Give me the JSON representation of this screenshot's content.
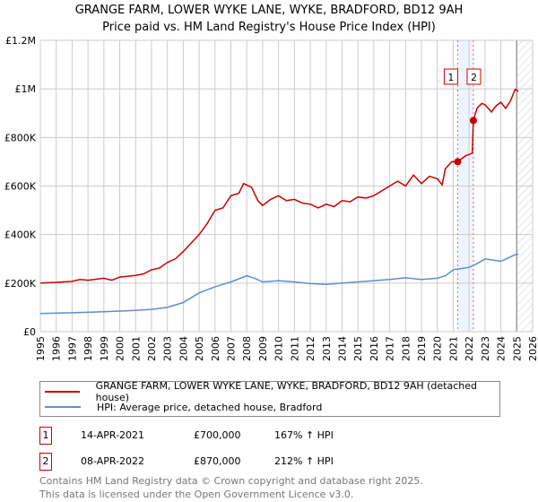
{
  "chart_data": {
    "type": "line",
    "title": "GRANGE FARM, LOWER WYKE LANE, WYKE, BRADFORD, BD12 9AH",
    "subtitle": "Price paid vs. HM Land Registry's House Price Index (HPI)",
    "xlim": [
      1995,
      2026
    ],
    "ylim": [
      0,
      1200000
    ],
    "x_ticks": [
      "1995",
      "1996",
      "1997",
      "1998",
      "1999",
      "2000",
      "2001",
      "2002",
      "2003",
      "2004",
      "2005",
      "2006",
      "2007",
      "2008",
      "2009",
      "2010",
      "2011",
      "2012",
      "2013",
      "2014",
      "2015",
      "2016",
      "2017",
      "2018",
      "2019",
      "2020",
      "2021",
      "2022",
      "2023",
      "2024",
      "2025",
      "2026"
    ],
    "y_ticks": [
      {
        "v": 0,
        "label": "£0"
      },
      {
        "v": 200000,
        "label": "£200K"
      },
      {
        "v": 400000,
        "label": "£400K"
      },
      {
        "v": 600000,
        "label": "£600K"
      },
      {
        "v": 800000,
        "label": "£800K"
      },
      {
        "v": 1000000,
        "label": "£1M"
      },
      {
        "v": 1200000,
        "label": "£1.2M"
      }
    ],
    "grid": true,
    "series": [
      {
        "name": "GRANGE FARM, LOWER WYKE LANE, WYKE, BRADFORD, BD12 9AH (detached house)",
        "color": "#cc0000",
        "x": [
          1995,
          1996,
          1997,
          1997.5,
          1998,
          1999,
          1999.5,
          2000,
          2001,
          2001.5,
          2002,
          2002.5,
          2003,
          2003.5,
          2004,
          2004.5,
          2005,
          2005.5,
          2006,
          2006.5,
          2007,
          2007.5,
          2007.8,
          2008.3,
          2008.7,
          2009,
          2009.5,
          2010,
          2010.5,
          2011,
          2011.5,
          2012,
          2012.5,
          2013,
          2013.5,
          2014,
          2014.5,
          2015,
          2015.5,
          2016,
          2016.5,
          2017,
          2017.5,
          2018,
          2018.5,
          2019,
          2019.5,
          2020,
          2020.3,
          2020.5,
          2020.9,
          2021.28,
          2021.8,
          2022.2,
          2022.27,
          2022.5,
          2022.8,
          2023,
          2023.4,
          2023.7,
          2024,
          2024.3,
          2024.6,
          2024.9,
          2025.1
        ],
        "y": [
          200000,
          203000,
          207000,
          215000,
          212000,
          220000,
          212000,
          225000,
          232000,
          238000,
          255000,
          262000,
          285000,
          300000,
          330000,
          365000,
          400000,
          445000,
          500000,
          510000,
          560000,
          570000,
          610000,
          595000,
          540000,
          520000,
          545000,
          560000,
          540000,
          545000,
          530000,
          525000,
          510000,
          525000,
          515000,
          540000,
          535000,
          555000,
          550000,
          560000,
          580000,
          600000,
          620000,
          600000,
          645000,
          610000,
          640000,
          630000,
          605000,
          670000,
          700000,
          700000,
          725000,
          735000,
          870000,
          920000,
          940000,
          935000,
          905000,
          930000,
          945000,
          920000,
          950000,
          998000,
          990000
        ]
      },
      {
        "name": "HPI: Average price, detached house, Bradford",
        "color": "#5b8fd0",
        "x": [
          1995,
          1997,
          1999,
          2000,
          2001,
          2002,
          2003,
          2004,
          2005,
          2006,
          2007,
          2008,
          2008.5,
          2009,
          2010,
          2011,
          2012,
          2013,
          2014,
          2015,
          2016,
          2017,
          2018,
          2019,
          2020,
          2020.5,
          2021,
          2022,
          2022.5,
          2023,
          2023.5,
          2024,
          2024.5,
          2025,
          2025.1
        ],
        "y": [
          75000,
          78000,
          82000,
          85000,
          88000,
          92000,
          100000,
          120000,
          160000,
          185000,
          205000,
          230000,
          220000,
          205000,
          210000,
          205000,
          198000,
          195000,
          200000,
          205000,
          210000,
          215000,
          222000,
          215000,
          220000,
          230000,
          255000,
          265000,
          280000,
          300000,
          295000,
          290000,
          305000,
          320000,
          318000
        ]
      }
    ],
    "shaded_range": [
      2021.28,
      2022.27
    ],
    "forecast_hatch_from": 2025.0,
    "sales": [
      {
        "id": "1",
        "x": 2021.28,
        "y": 700000,
        "date": "14-APR-2021",
        "price": "£700,000",
        "hpi": "167% ↑ HPI"
      },
      {
        "id": "2",
        "x": 2022.27,
        "y": 870000,
        "date": "08-APR-2022",
        "price": "£870,000",
        "hpi": "212% ↑ HPI"
      }
    ]
  },
  "footer": {
    "line1": "Contains HM Land Registry data © Crown copyright and database right 2025.",
    "line2": "This data is licensed under the Open Government Licence v3.0."
  }
}
